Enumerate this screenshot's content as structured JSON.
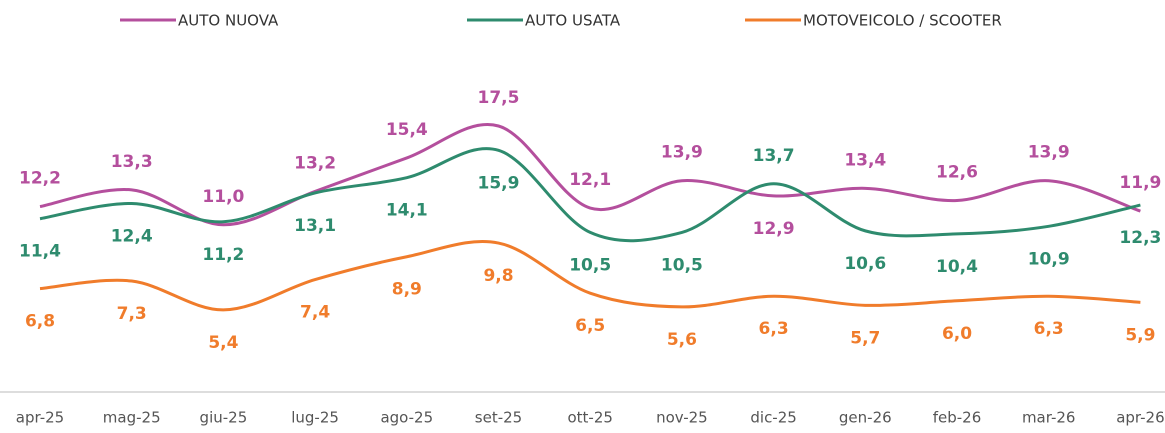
{
  "chart_data": {
    "type": "line",
    "categories": [
      "apr-25",
      "mag-25",
      "giu-25",
      "lug-25",
      "ago-25",
      "set-25",
      "ott-25",
      "nov-25",
      "dic-25",
      "gen-26",
      "feb-26",
      "mar-26",
      "apr-26"
    ],
    "series": [
      {
        "name": "AUTO NUOVA",
        "color": "#b44f9d",
        "values": [
          12.2,
          13.3,
          11.0,
          13.2,
          15.4,
          17.5,
          12.1,
          13.9,
          12.9,
          13.4,
          12.6,
          13.9,
          11.9
        ],
        "value_labels": [
          "12,2",
          "13,3",
          "11,0",
          "13,2",
          "15,4",
          "17,5",
          "12,1",
          "13,9",
          "12,9",
          "13,4",
          "12,6",
          "13,9",
          "11,9"
        ]
      },
      {
        "name": "AUTO USATA",
        "color": "#2e8b6e",
        "values": [
          11.4,
          12.4,
          11.2,
          13.1,
          14.1,
          15.9,
          10.5,
          10.5,
          13.7,
          10.6,
          10.4,
          10.9,
          12.3
        ],
        "value_labels": [
          "11,4",
          "12,4",
          "11,2",
          "13,1",
          "14,1",
          "15,9",
          "10,5",
          "10,5",
          "13,7",
          "10,6",
          "10,4",
          "10,9",
          "12,3"
        ]
      },
      {
        "name": "MOTOVEICOLO / SCOOTER",
        "color": "#f07c2b",
        "values": [
          6.8,
          7.3,
          5.4,
          7.4,
          8.9,
          9.8,
          6.5,
          5.6,
          6.3,
          5.7,
          6.0,
          6.3,
          5.9
        ],
        "value_labels": [
          "6,8",
          "7,3",
          "5,4",
          "7,4",
          "8,9",
          "9,8",
          "6,5",
          "5,6",
          "6,3",
          "5,7",
          "6,0",
          "6,3",
          "5,9"
        ]
      }
    ]
  }
}
